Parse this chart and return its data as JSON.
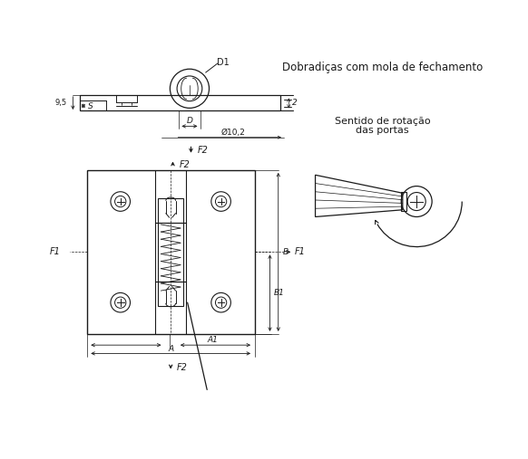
{
  "bg_color": "#ffffff",
  "line_color": "#1a1a1a",
  "title": "Dobradiças com mola de fechamento",
  "subtitle1": "Sentido de rotação",
  "subtitle2": "das portas"
}
